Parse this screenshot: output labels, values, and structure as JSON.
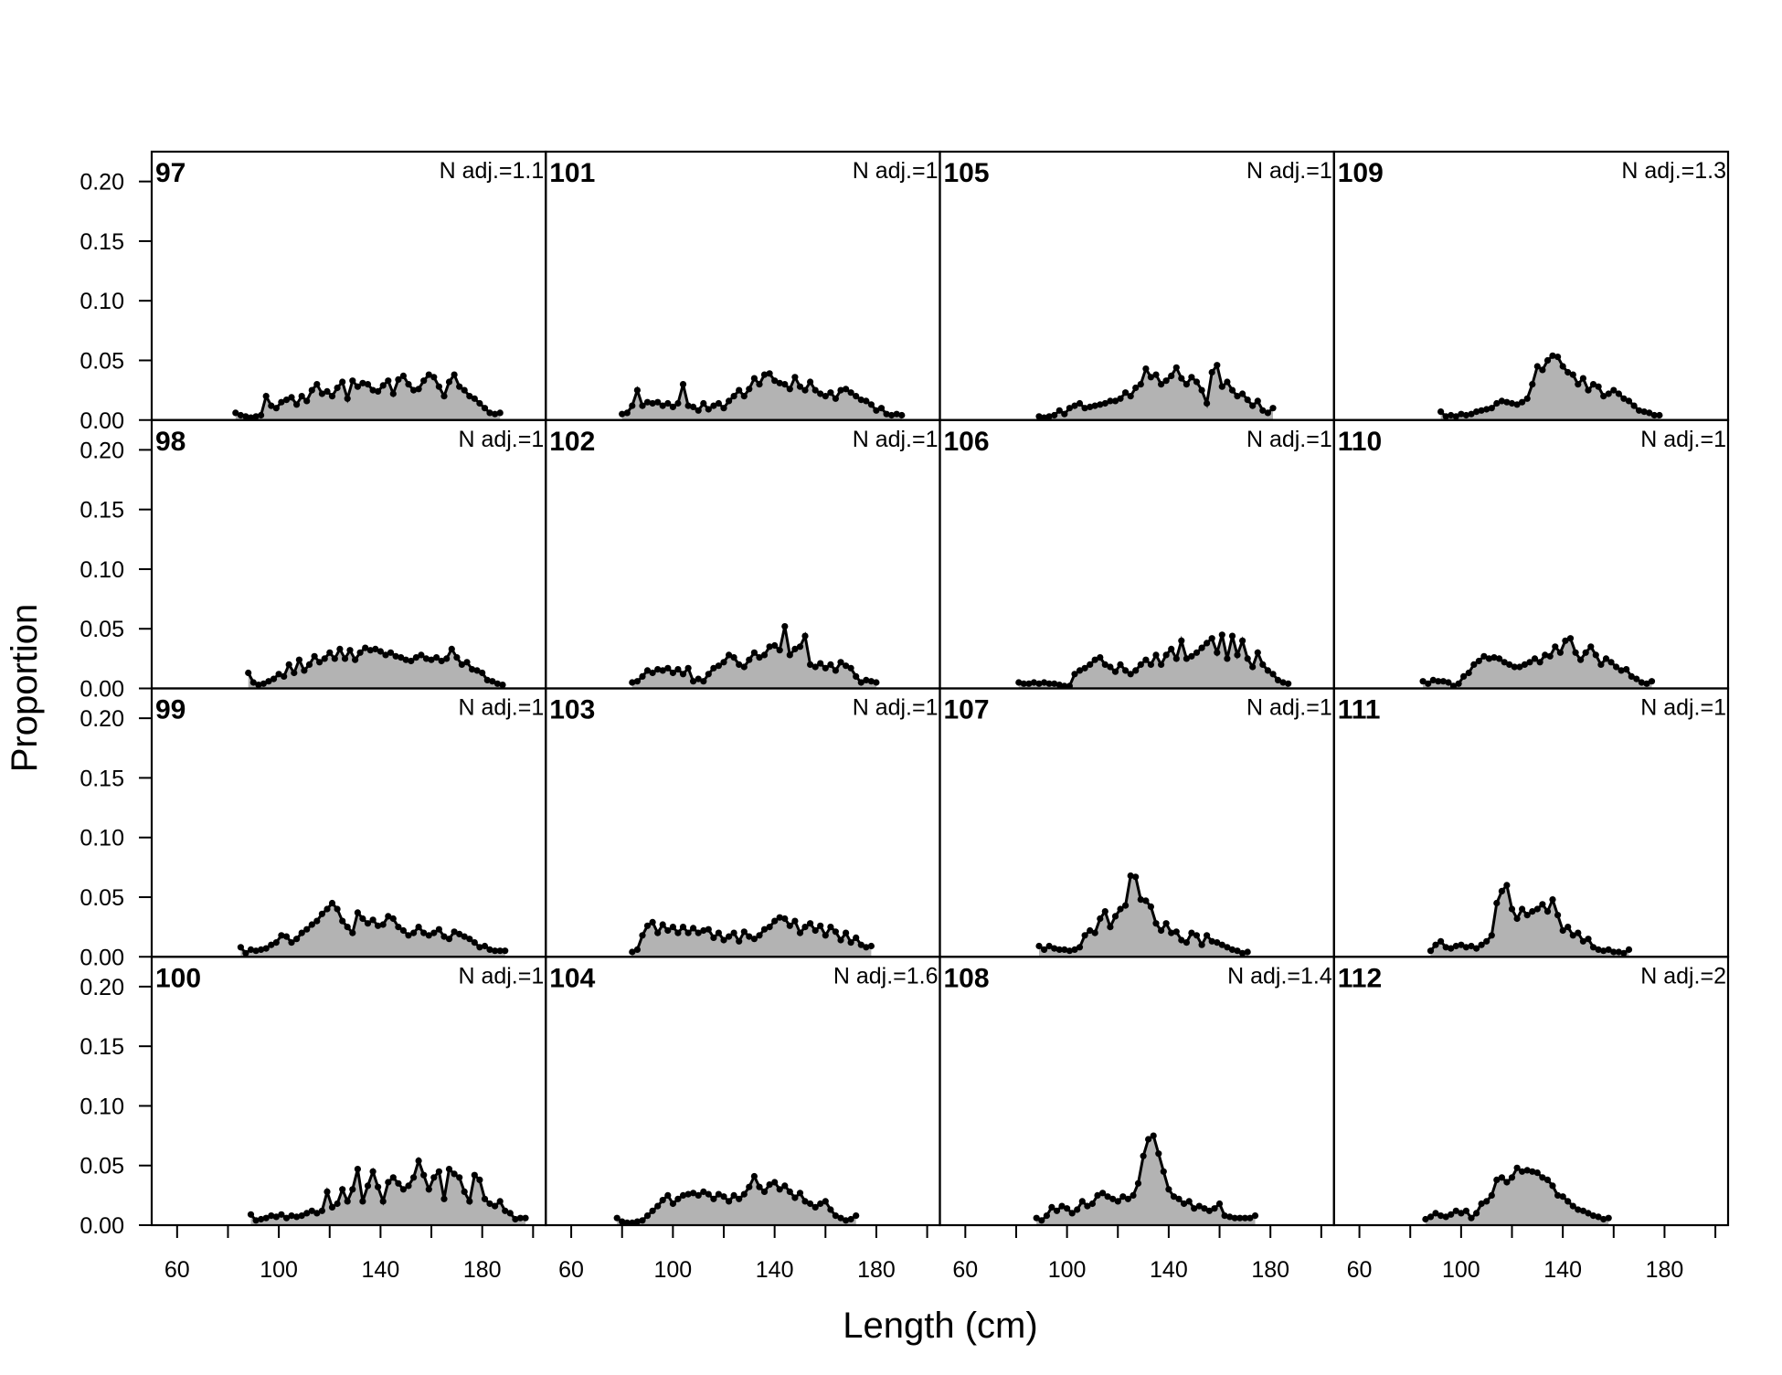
{
  "chart_data": {
    "type": "area",
    "xlabel": "Length (cm)",
    "ylabel": "Proportion",
    "xlim": [
      50,
      205
    ],
    "ylim": [
      0,
      0.225
    ],
    "x_ticks": [
      60,
      100,
      140,
      180
    ],
    "y_ticks": [
      "0.00",
      "0.05",
      "0.10",
      "0.15",
      "0.20"
    ],
    "grid": false,
    "layout": "4 columns x 4 rows, panels ordered down columns",
    "fill_color": "#b3b3b3",
    "line_color": "#000000",
    "panels": [
      {
        "label": "97",
        "nadj": "N adj.=1.1",
        "x_start": 83,
        "values": [
          0.006,
          0.004,
          0.003,
          0.002,
          0.003,
          0.004,
          0.02,
          0.012,
          0.01,
          0.015,
          0.017,
          0.019,
          0.013,
          0.02,
          0.016,
          0.025,
          0.03,
          0.022,
          0.024,
          0.02,
          0.027,
          0.032,
          0.018,
          0.033,
          0.028,
          0.031,
          0.03,
          0.025,
          0.024,
          0.029,
          0.033,
          0.022,
          0.034,
          0.037,
          0.03,
          0.025,
          0.026,
          0.033,
          0.038,
          0.036,
          0.028,
          0.02,
          0.032,
          0.038,
          0.028,
          0.025,
          0.02,
          0.018,
          0.014,
          0.01,
          0.006,
          0.005,
          0.006
        ]
      },
      {
        "label": "98",
        "nadj": "N adj.=1",
        "x_start": 88,
        "values": [
          0.013,
          0.005,
          0.003,
          0.004,
          0.006,
          0.008,
          0.012,
          0.01,
          0.02,
          0.013,
          0.024,
          0.015,
          0.02,
          0.027,
          0.022,
          0.025,
          0.03,
          0.025,
          0.033,
          0.025,
          0.032,
          0.024,
          0.03,
          0.034,
          0.032,
          0.033,
          0.031,
          0.028,
          0.03,
          0.027,
          0.026,
          0.024,
          0.023,
          0.026,
          0.028,
          0.025,
          0.024,
          0.026,
          0.023,
          0.025,
          0.033,
          0.026,
          0.02,
          0.022,
          0.016,
          0.015,
          0.013,
          0.007,
          0.006,
          0.004,
          0.003
        ]
      },
      {
        "label": "99",
        "nadj": "N adj.=1",
        "x_start": 85,
        "values": [
          0.008,
          0.003,
          0.006,
          0.005,
          0.006,
          0.007,
          0.01,
          0.012,
          0.018,
          0.017,
          0.012,
          0.015,
          0.02,
          0.023,
          0.027,
          0.03,
          0.036,
          0.04,
          0.045,
          0.04,
          0.03,
          0.025,
          0.02,
          0.037,
          0.032,
          0.028,
          0.031,
          0.026,
          0.027,
          0.034,
          0.032,
          0.025,
          0.022,
          0.018,
          0.02,
          0.025,
          0.02,
          0.018,
          0.02,
          0.023,
          0.017,
          0.015,
          0.021,
          0.019,
          0.017,
          0.015,
          0.012,
          0.008,
          0.009,
          0.006,
          0.005,
          0.005,
          0.005
        ]
      },
      {
        "label": "100",
        "nadj": "N adj.=1",
        "x_start": 89,
        "values": [
          0.009,
          0.004,
          0.005,
          0.006,
          0.008,
          0.007,
          0.009,
          0.006,
          0.008,
          0.007,
          0.008,
          0.01,
          0.012,
          0.01,
          0.012,
          0.028,
          0.015,
          0.018,
          0.03,
          0.02,
          0.03,
          0.047,
          0.02,
          0.033,
          0.045,
          0.032,
          0.02,
          0.036,
          0.04,
          0.035,
          0.03,
          0.033,
          0.04,
          0.054,
          0.042,
          0.03,
          0.04,
          0.045,
          0.022,
          0.047,
          0.043,
          0.04,
          0.028,
          0.02,
          0.042,
          0.038,
          0.022,
          0.018,
          0.016,
          0.02,
          0.012,
          0.01,
          0.005,
          0.006,
          0.006
        ]
      },
      {
        "label": "101",
        "nadj": "N adj.=1",
        "x_start": 80,
        "values": [
          0.005,
          0.006,
          0.012,
          0.025,
          0.012,
          0.015,
          0.014,
          0.015,
          0.012,
          0.014,
          0.011,
          0.014,
          0.03,
          0.012,
          0.011,
          0.008,
          0.014,
          0.009,
          0.012,
          0.014,
          0.01,
          0.016,
          0.02,
          0.025,
          0.02,
          0.026,
          0.035,
          0.03,
          0.038,
          0.039,
          0.033,
          0.031,
          0.03,
          0.026,
          0.036,
          0.028,
          0.025,
          0.032,
          0.025,
          0.022,
          0.02,
          0.023,
          0.018,
          0.025,
          0.026,
          0.023,
          0.02,
          0.017,
          0.016,
          0.013,
          0.008,
          0.01,
          0.005,
          0.004,
          0.005,
          0.004
        ]
      },
      {
        "label": "102",
        "nadj": "N adj.=1",
        "x_start": 84,
        "values": [
          0.005,
          0.006,
          0.01,
          0.015,
          0.013,
          0.016,
          0.015,
          0.017,
          0.013,
          0.016,
          0.012,
          0.017,
          0.006,
          0.008,
          0.006,
          0.012,
          0.017,
          0.019,
          0.022,
          0.028,
          0.026,
          0.02,
          0.018,
          0.024,
          0.03,
          0.026,
          0.028,
          0.035,
          0.036,
          0.032,
          0.052,
          0.028,
          0.033,
          0.035,
          0.044,
          0.02,
          0.018,
          0.021,
          0.017,
          0.02,
          0.015,
          0.022,
          0.019,
          0.017,
          0.01,
          0.005,
          0.007,
          0.006,
          0.005
        ]
      },
      {
        "label": "103",
        "nadj": "N adj.=1",
        "x_start": 84,
        "values": [
          0.004,
          0.006,
          0.018,
          0.026,
          0.029,
          0.02,
          0.027,
          0.022,
          0.025,
          0.02,
          0.025,
          0.02,
          0.024,
          0.02,
          0.022,
          0.023,
          0.016,
          0.02,
          0.014,
          0.017,
          0.02,
          0.013,
          0.021,
          0.017,
          0.015,
          0.018,
          0.023,
          0.025,
          0.03,
          0.033,
          0.032,
          0.026,
          0.03,
          0.02,
          0.025,
          0.028,
          0.022,
          0.026,
          0.018,
          0.025,
          0.021,
          0.014,
          0.02,
          0.012,
          0.016,
          0.01,
          0.008,
          0.009
        ]
      },
      {
        "label": "104",
        "nadj": "N adj.=1.6",
        "x_start": 78,
        "values": [
          0.006,
          0.003,
          0.002,
          0.002,
          0.003,
          0.004,
          0.008,
          0.012,
          0.016,
          0.021,
          0.025,
          0.018,
          0.022,
          0.025,
          0.026,
          0.027,
          0.025,
          0.028,
          0.026,
          0.022,
          0.026,
          0.024,
          0.02,
          0.025,
          0.022,
          0.026,
          0.032,
          0.041,
          0.032,
          0.028,
          0.034,
          0.036,
          0.03,
          0.033,
          0.028,
          0.023,
          0.027,
          0.02,
          0.018,
          0.015,
          0.018,
          0.02,
          0.013,
          0.008,
          0.006,
          0.004,
          0.005,
          0.008
        ]
      },
      {
        "label": "105",
        "nadj": "N adj.=1",
        "x_start": 89,
        "values": [
          0.003,
          0.002,
          0.003,
          0.004,
          0.008,
          0.005,
          0.01,
          0.012,
          0.014,
          0.01,
          0.011,
          0.012,
          0.013,
          0.014,
          0.016,
          0.016,
          0.018,
          0.023,
          0.02,
          0.027,
          0.03,
          0.043,
          0.036,
          0.038,
          0.03,
          0.033,
          0.037,
          0.044,
          0.035,
          0.03,
          0.036,
          0.032,
          0.025,
          0.014,
          0.04,
          0.046,
          0.028,
          0.032,
          0.025,
          0.02,
          0.022,
          0.017,
          0.012,
          0.016,
          0.008,
          0.006,
          0.01
        ]
      },
      {
        "label": "106",
        "nadj": "N adj.=1",
        "x_start": 81,
        "values": [
          0.005,
          0.004,
          0.004,
          0.005,
          0.004,
          0.005,
          0.004,
          0.004,
          0.003,
          0.002,
          0.002,
          0.012,
          0.015,
          0.017,
          0.02,
          0.024,
          0.026,
          0.02,
          0.018,
          0.014,
          0.02,
          0.015,
          0.012,
          0.015,
          0.02,
          0.024,
          0.02,
          0.028,
          0.02,
          0.028,
          0.033,
          0.025,
          0.04,
          0.025,
          0.027,
          0.03,
          0.034,
          0.038,
          0.042,
          0.03,
          0.045,
          0.025,
          0.044,
          0.028,
          0.04,
          0.025,
          0.018,
          0.03,
          0.02,
          0.015,
          0.012,
          0.007,
          0.005,
          0.004
        ]
      },
      {
        "label": "107",
        "nadj": "N adj.=1",
        "x_start": 89,
        "values": [
          0.009,
          0.006,
          0.009,
          0.007,
          0.006,
          0.006,
          0.005,
          0.006,
          0.008,
          0.018,
          0.022,
          0.02,
          0.032,
          0.038,
          0.025,
          0.034,
          0.04,
          0.043,
          0.068,
          0.067,
          0.048,
          0.047,
          0.042,
          0.028,
          0.022,
          0.028,
          0.02,
          0.021,
          0.014,
          0.012,
          0.02,
          0.018,
          0.01,
          0.018,
          0.013,
          0.012,
          0.01,
          0.008,
          0.006,
          0.005,
          0.003,
          0.004
        ]
      },
      {
        "label": "108",
        "nadj": "N adj.=1.4",
        "x_start": 88,
        "values": [
          0.006,
          0.004,
          0.008,
          0.015,
          0.012,
          0.016,
          0.014,
          0.01,
          0.013,
          0.02,
          0.016,
          0.018,
          0.025,
          0.027,
          0.024,
          0.022,
          0.02,
          0.024,
          0.022,
          0.025,
          0.035,
          0.058,
          0.072,
          0.075,
          0.06,
          0.045,
          0.03,
          0.024,
          0.022,
          0.018,
          0.02,
          0.014,
          0.016,
          0.014,
          0.012,
          0.014,
          0.018,
          0.008,
          0.007,
          0.006,
          0.006,
          0.006,
          0.006,
          0.008
        ]
      },
      {
        "label": "109",
        "nadj": "N adj.=1.3",
        "x_start": 92,
        "values": [
          0.007,
          0.003,
          0.004,
          0.003,
          0.005,
          0.004,
          0.005,
          0.007,
          0.008,
          0.009,
          0.01,
          0.014,
          0.016,
          0.015,
          0.014,
          0.013,
          0.015,
          0.018,
          0.03,
          0.045,
          0.042,
          0.05,
          0.054,
          0.053,
          0.045,
          0.04,
          0.038,
          0.03,
          0.035,
          0.025,
          0.03,
          0.028,
          0.02,
          0.022,
          0.025,
          0.022,
          0.018,
          0.016,
          0.012,
          0.008,
          0.007,
          0.006,
          0.004,
          0.004
        ]
      },
      {
        "label": "110",
        "nadj": "N adj.=1",
        "x_start": 85,
        "values": [
          0.006,
          0.004,
          0.007,
          0.006,
          0.006,
          0.005,
          0.002,
          0.004,
          0.01,
          0.013,
          0.02,
          0.023,
          0.027,
          0.025,
          0.026,
          0.025,
          0.022,
          0.02,
          0.018,
          0.018,
          0.02,
          0.022,
          0.025,
          0.022,
          0.028,
          0.027,
          0.035,
          0.03,
          0.04,
          0.042,
          0.03,
          0.024,
          0.03,
          0.035,
          0.028,
          0.02,
          0.025,
          0.022,
          0.018,
          0.015,
          0.016,
          0.01,
          0.008,
          0.005,
          0.004,
          0.006
        ]
      },
      {
        "label": "111",
        "nadj": "N adj.=1",
        "x_start": 88,
        "values": [
          0.005,
          0.01,
          0.013,
          0.008,
          0.007,
          0.009,
          0.01,
          0.008,
          0.009,
          0.007,
          0.01,
          0.013,
          0.018,
          0.045,
          0.055,
          0.06,
          0.04,
          0.032,
          0.04,
          0.035,
          0.038,
          0.04,
          0.044,
          0.038,
          0.048,
          0.035,
          0.022,
          0.025,
          0.018,
          0.02,
          0.013,
          0.015,
          0.008,
          0.006,
          0.005,
          0.006,
          0.004,
          0.004,
          0.003,
          0.006
        ]
      },
      {
        "label": "112",
        "nadj": "N adj.=2",
        "x_start": 86,
        "values": [
          0.005,
          0.007,
          0.01,
          0.008,
          0.007,
          0.009,
          0.012,
          0.01,
          0.012,
          0.006,
          0.01,
          0.018,
          0.02,
          0.025,
          0.038,
          0.04,
          0.036,
          0.04,
          0.048,
          0.045,
          0.046,
          0.045,
          0.044,
          0.04,
          0.038,
          0.033,
          0.025,
          0.024,
          0.02,
          0.016,
          0.013,
          0.012,
          0.01,
          0.008,
          0.007,
          0.005,
          0.006
        ]
      }
    ]
  }
}
